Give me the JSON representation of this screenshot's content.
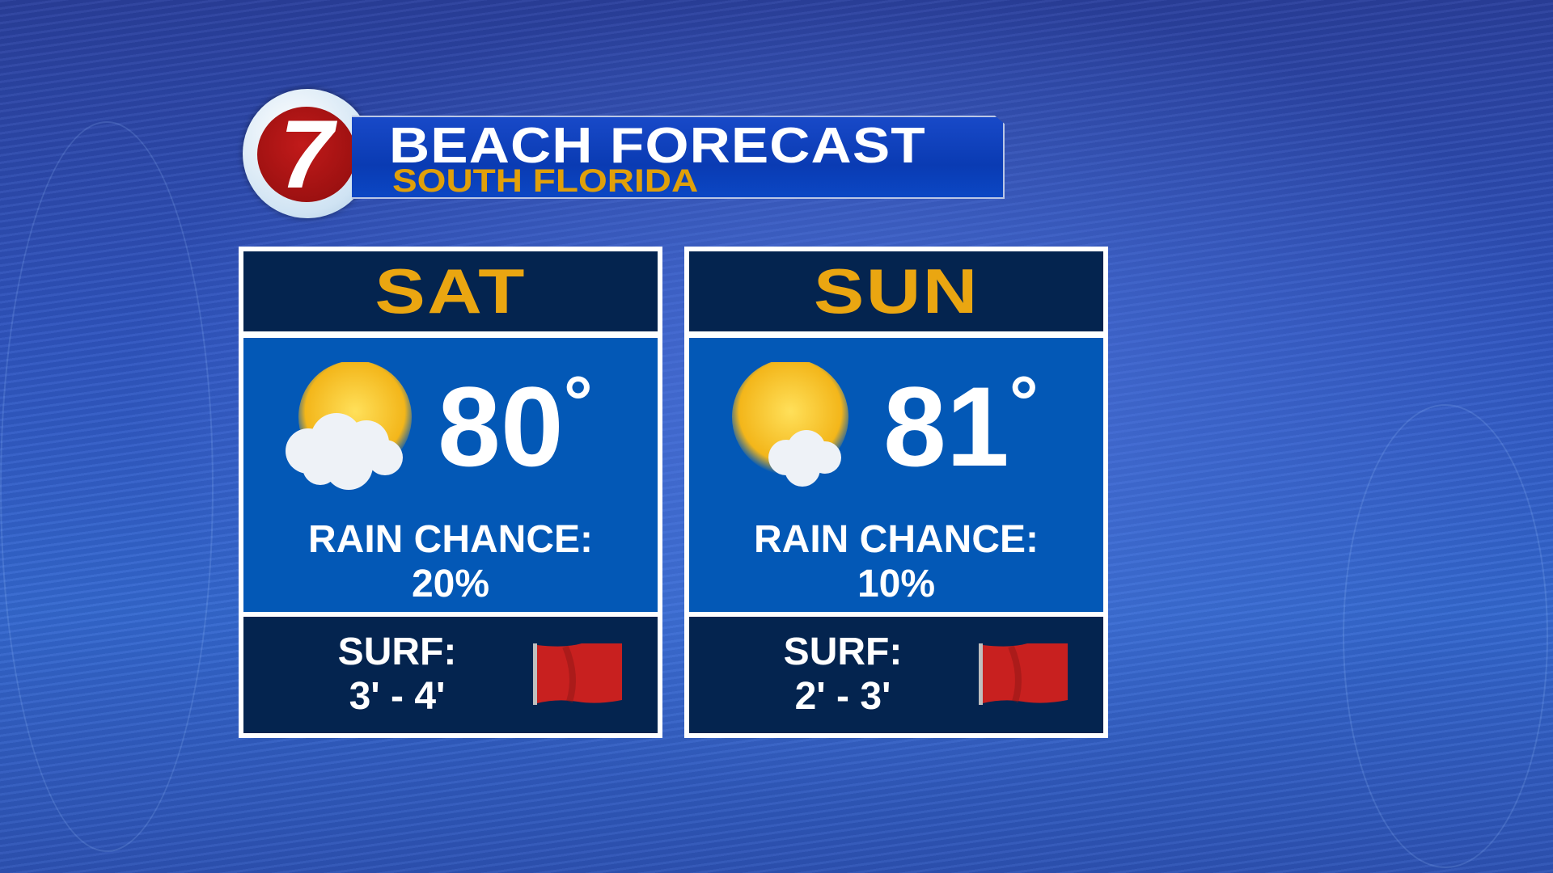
{
  "header": {
    "logo_text": "7",
    "title": "BEACH FORECAST",
    "subtitle": "SOUTH FLORIDA"
  },
  "colors": {
    "day_label": "#eaa611",
    "subtitle": "#e0a00a",
    "panel_dark": "#04244f",
    "panel_mid": "#0358b6",
    "flag": "#c8201f"
  },
  "days": [
    {
      "day": "SAT",
      "icon": "partly-cloudy-icon",
      "temp": "80",
      "deg": "°",
      "rain_label": "RAIN CHANCE:",
      "rain_value": "20%",
      "surf_label": "SURF:",
      "surf_value": "3' - 4'",
      "flag": "red-flag-icon"
    },
    {
      "day": "SUN",
      "icon": "mostly-sunny-icon",
      "temp": "81",
      "deg": "°",
      "rain_label": "RAIN CHANCE:",
      "rain_value": "10%",
      "surf_label": "SURF:",
      "surf_value": "2' - 3'",
      "flag": "red-flag-icon"
    }
  ]
}
